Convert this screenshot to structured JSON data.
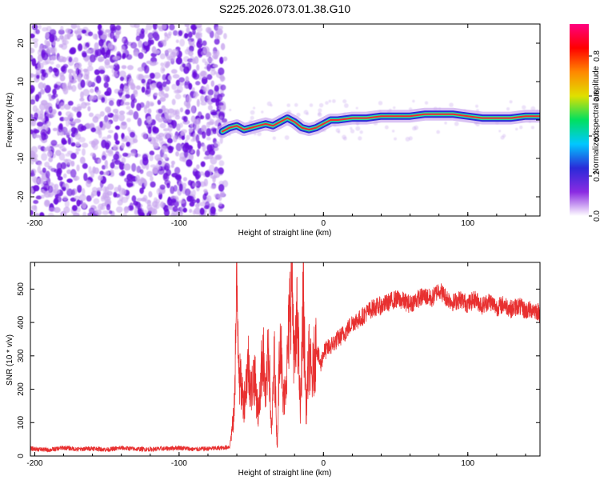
{
  "page": {
    "title": "S225.2026.073.01.38.G10"
  },
  "colors": {
    "frame": "#000000",
    "snr_line": "#e83030",
    "scatter_dense": "#6a10dd",
    "scatter_light": "#c9a8ee",
    "ridge_outer": "#2a2ad8",
    "ridge_mid": "#27e0a0",
    "ridge_core": "#ef2c2c",
    "colorbar_stops": [
      "#ffffff",
      "#8a2be2",
      "#2a2ad8",
      "#00c8ff",
      "#00e060",
      "#e0e000",
      "#ff8800",
      "#ff0000",
      "#ff0080"
    ]
  },
  "chart_data": [
    {
      "id": "spectrogram",
      "type": "heatmap",
      "title": "S225.2026.073.01.38.G10",
      "xlabel": "Height of straight line (km)",
      "ylabel": "Frequency (Hz)",
      "xlim": [
        -203,
        150
      ],
      "ylim": [
        -25,
        25
      ],
      "xticks": [
        -200,
        -100,
        0,
        100
      ],
      "xtick_labels": [
        "-200",
        "-100",
        "0",
        "100"
      ],
      "yticks": [
        -20,
        -10,
        0,
        10,
        20
      ],
      "ytick_labels": [
        "-20",
        "-10",
        "0",
        "10",
        "20"
      ],
      "noise_region_x": [
        -203,
        -68
      ],
      "ridge": {
        "x": [
          -70,
          -65,
          -60,
          -55,
          -50,
          -45,
          -40,
          -35,
          -30,
          -25,
          -20,
          -15,
          -10,
          -5,
          0,
          5,
          10,
          20,
          30,
          40,
          50,
          60,
          70,
          80,
          90,
          100,
          110,
          120,
          130,
          140,
          150
        ],
        "y": [
          -3.0,
          -2.0,
          -1.5,
          -2.5,
          -2.0,
          -1.5,
          -1.0,
          -1.5,
          -0.5,
          0.5,
          -0.5,
          -2.0,
          -2.5,
          -2.0,
          -1.0,
          0.0,
          0.0,
          0.5,
          0.5,
          1.0,
          1.0,
          1.0,
          1.5,
          1.5,
          1.5,
          1.0,
          0.5,
          0.5,
          0.5,
          1.0,
          1.0
        ]
      },
      "colorbar": {
        "label": "Normalized spectral amplitude",
        "range": [
          0.0,
          0.96
        ],
        "ticks": [
          0.0,
          0.2,
          0.4,
          0.6,
          0.8
        ],
        "tick_labels": [
          "0.0",
          "0.2",
          "0.4",
          "0.6",
          "0.8"
        ]
      }
    },
    {
      "id": "snr",
      "type": "line",
      "xlabel": "Height of straight line (km)",
      "ylabel": "SNR (10 * v/v)",
      "xlim": [
        -203,
        150
      ],
      "ylim": [
        0,
        580
      ],
      "xticks": [
        -200,
        -100,
        0,
        100
      ],
      "xtick_labels": [
        "-200",
        "-100",
        "0",
        "100"
      ],
      "yticks": [
        0,
        100,
        200,
        300,
        400,
        500
      ],
      "ytick_labels": [
        "0",
        "100",
        "200",
        "300",
        "400",
        "500"
      ],
      "series": [
        {
          "name": "SNR",
          "x": [
            -203,
            -190,
            -180,
            -170,
            -160,
            -150,
            -140,
            -130,
            -120,
            -110,
            -100,
            -90,
            -80,
            -70,
            -65,
            -62,
            -60,
            -58,
            -55,
            -52,
            -50,
            -48,
            -45,
            -42,
            -40,
            -38,
            -36,
            -34,
            -32,
            -30,
            -28,
            -25,
            -22,
            -20,
            -18,
            -16,
            -14,
            -12,
            -10,
            -8,
            -5,
            -2,
            0,
            5,
            10,
            15,
            20,
            25,
            30,
            35,
            40,
            45,
            50,
            55,
            60,
            65,
            70,
            75,
            80,
            85,
            90,
            95,
            100,
            105,
            110,
            115,
            120,
            125,
            130,
            135,
            140,
            145,
            150
          ],
          "values": [
            22,
            18,
            25,
            20,
            23,
            19,
            24,
            21,
            20,
            22,
            25,
            20,
            22,
            24,
            28,
            120,
            500,
            230,
            160,
            280,
            190,
            250,
            120,
            330,
            160,
            340,
            60,
            300,
            20,
            410,
            150,
            280,
            560,
            260,
            430,
            120,
            470,
            140,
            300,
            230,
            330,
            270,
            310,
            330,
            350,
            370,
            400,
            410,
            430,
            445,
            450,
            460,
            470,
            465,
            455,
            470,
            480,
            470,
            500,
            475,
            460,
            470,
            455,
            470,
            450,
            465,
            445,
            455,
            440,
            450,
            435,
            440,
            430
          ]
        }
      ]
    }
  ]
}
